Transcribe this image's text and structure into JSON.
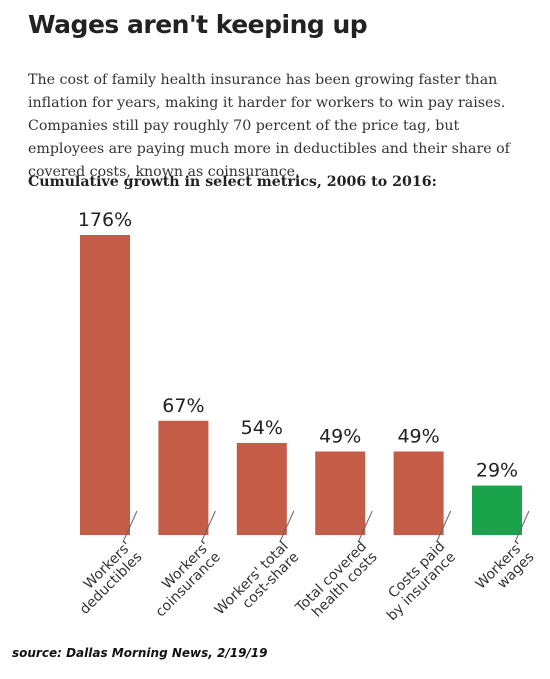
{
  "header": {
    "title": "Wages aren't keeping up",
    "description": "The cost of family health insurance has been growing faster than inflation for years, making it harder for workers to win pay raises. Companies still pay roughly 70 percent of the price tag, but employees are paying much more in deductibles and their share of covered costs, known as coinsurance.",
    "subtitle": "Cumulative growth in select metrics, 2006 to 2016:"
  },
  "footer": {
    "source": "source: Dallas Morning News, 2/19/19"
  },
  "chart_data": {
    "type": "bar",
    "title": "Cumulative growth in select metrics, 2006 to 2016:",
    "categories": [
      [
        "Workers'",
        "deductibles"
      ],
      [
        "Workers'",
        "coinsurance"
      ],
      [
        "Workers' total",
        "cost-share"
      ],
      [
        "Total covered",
        "health costs"
      ],
      [
        "Costs paid",
        "by insurance"
      ],
      [
        "Workers'",
        "wages"
      ]
    ],
    "values": [
      176,
      67,
      54,
      49,
      49,
      29
    ],
    "data_labels": [
      "176%",
      "67%",
      "54%",
      "49%",
      "49%",
      "29%"
    ],
    "unit": "%",
    "colors": [
      "#c45c48",
      "#c45c48",
      "#c45c48",
      "#c45c48",
      "#c45c48",
      "#1aa34a"
    ],
    "grid": false,
    "legend": "none"
  }
}
